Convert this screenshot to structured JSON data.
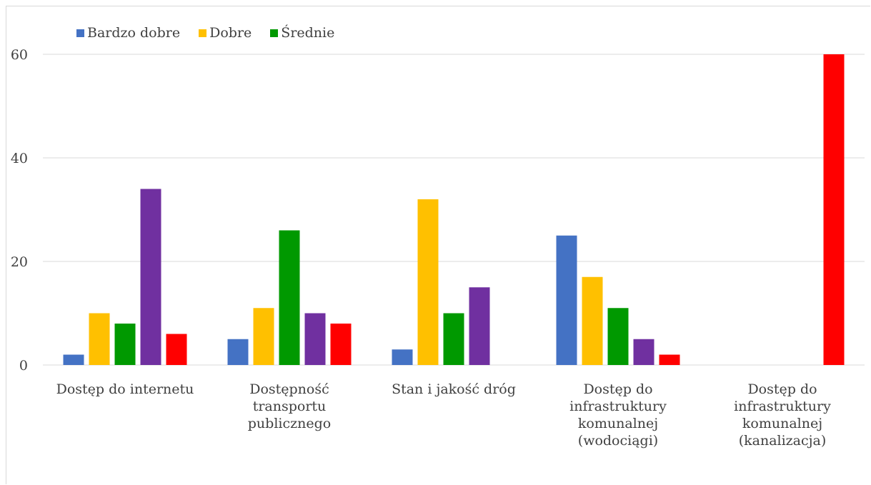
{
  "chart_data": {
    "type": "bar",
    "title": "",
    "xlabel": "",
    "ylabel": "",
    "ylim": [
      0,
      60
    ],
    "yticks": [
      0,
      20,
      40,
      60
    ],
    "grid": true,
    "legend_position": "top-left",
    "categories": [
      [
        "Dostęp do internetu"
      ],
      [
        "Dostępność",
        "transportu",
        "publicznego"
      ],
      [
        "Stan i jakość dróg"
      ],
      [
        "Dostęp do",
        "infrastruktury",
        "komunalnej",
        "(wodociągi)"
      ],
      [
        "Dostęp do",
        "infrastruktury",
        "komunalnej",
        "(kanalizacja)"
      ]
    ],
    "series": [
      {
        "name": "Bardzo dobre",
        "color": "#4472c4",
        "values": [
          2,
          5,
          3,
          25,
          0
        ]
      },
      {
        "name": "Dobre",
        "color": "#ffc000",
        "values": [
          10,
          11,
          32,
          17,
          0
        ]
      },
      {
        "name": "Średnie",
        "color": "#009900",
        "values": [
          8,
          26,
          10,
          11,
          0
        ]
      },
      {
        "color": "#7030a0",
        "values": [
          34,
          10,
          15,
          5,
          0
        ]
      },
      {
        "color": "#ff0000",
        "values": [
          6,
          8,
          0,
          2,
          60
        ]
      }
    ]
  }
}
